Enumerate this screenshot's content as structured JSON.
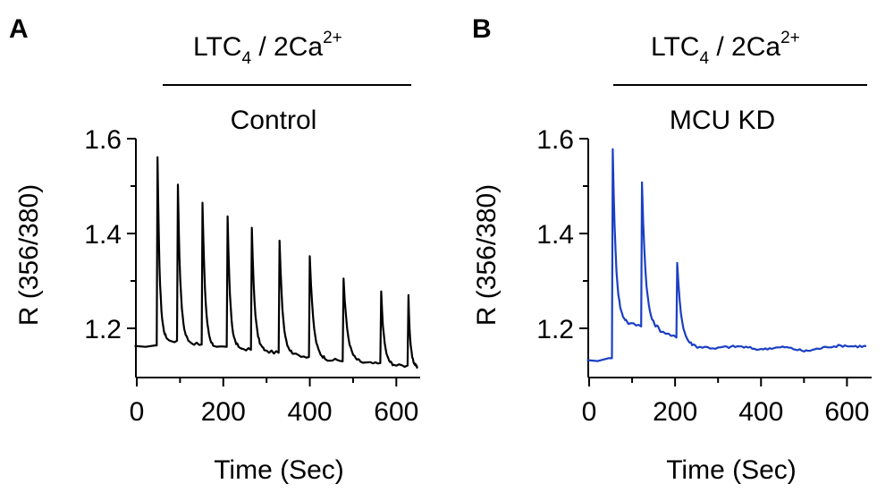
{
  "chart_data": [
    {
      "type": "line",
      "panel": "A",
      "treatment": {
        "main": "LTC",
        "sub": "4",
        "sep": " / 2Ca",
        "sup": "2+"
      },
      "condition": "Control",
      "xlabel": "Time (Sec)",
      "ylabel": "R (356/380)",
      "xticks": [
        "0",
        "200",
        "400",
        "600"
      ],
      "yticks": [
        "1.2",
        "1.4",
        "1.6"
      ],
      "xlim": [
        -10,
        660
      ],
      "ylim": [
        1.1,
        1.6
      ],
      "color": "#000000",
      "series": [
        {
          "baseline": [
            [
              -5,
              1.163
            ],
            [
              20,
              1.161
            ],
            [
              42,
              1.164
            ]
          ],
          "spikes": [
            {
              "t": 48,
              "peak": 1.561,
              "trough": 1.175
            },
            {
              "t": 95,
              "peak": 1.503,
              "trough": 1.17
            },
            {
              "t": 152,
              "peak": 1.465,
              "trough": 1.16
            },
            {
              "t": 210,
              "peak": 1.436,
              "trough": 1.158
            },
            {
              "t": 266,
              "peak": 1.412,
              "trough": 1.152
            },
            {
              "t": 330,
              "peak": 1.385,
              "trough": 1.145
            },
            {
              "t": 400,
              "peak": 1.352,
              "trough": 1.135
            },
            {
              "t": 478,
              "peak": 1.305,
              "trough": 1.128
            },
            {
              "t": 565,
              "peak": 1.278,
              "trough": 1.122
            },
            {
              "t": 628,
              "peak": 1.27,
              "trough": 1.12
            }
          ],
          "end": [
            [
              648,
              1.118
            ]
          ]
        }
      ]
    },
    {
      "type": "line",
      "panel": "B",
      "treatment": {
        "main": "LTC",
        "sub": "4",
        "sep": " / 2Ca",
        "sup": "2+"
      },
      "condition": "MCU KD",
      "xlabel": "Time (Sec)",
      "ylabel": "R (356/380)",
      "xticks": [
        "0",
        "200",
        "400",
        "600"
      ],
      "yticks": [
        "1.2",
        "1.4",
        "1.6"
      ],
      "xlim": [
        -10,
        660
      ],
      "ylim": [
        1.1,
        1.6
      ],
      "color": "#1b3fc4",
      "series": [
        {
          "baseline": [
            [
              -5,
              1.133
            ],
            [
              20,
              1.131
            ],
            [
              45,
              1.137
            ]
          ],
          "spikes": [
            {
              "t": 55,
              "peak": 1.578,
              "trough": 1.212
            },
            {
              "t": 123,
              "peak": 1.508,
              "trough": 1.198
            },
            {
              "t": 205,
              "peak": 1.338,
              "trough": 1.162
            }
          ],
          "end": [
            [
              300,
              1.158
            ],
            [
              350,
              1.162
            ],
            [
              400,
              1.155
            ],
            [
              450,
              1.16
            ],
            [
              500,
              1.152
            ],
            [
              550,
              1.16
            ],
            [
              600,
              1.164
            ],
            [
              645,
              1.162
            ]
          ]
        }
      ]
    }
  ]
}
